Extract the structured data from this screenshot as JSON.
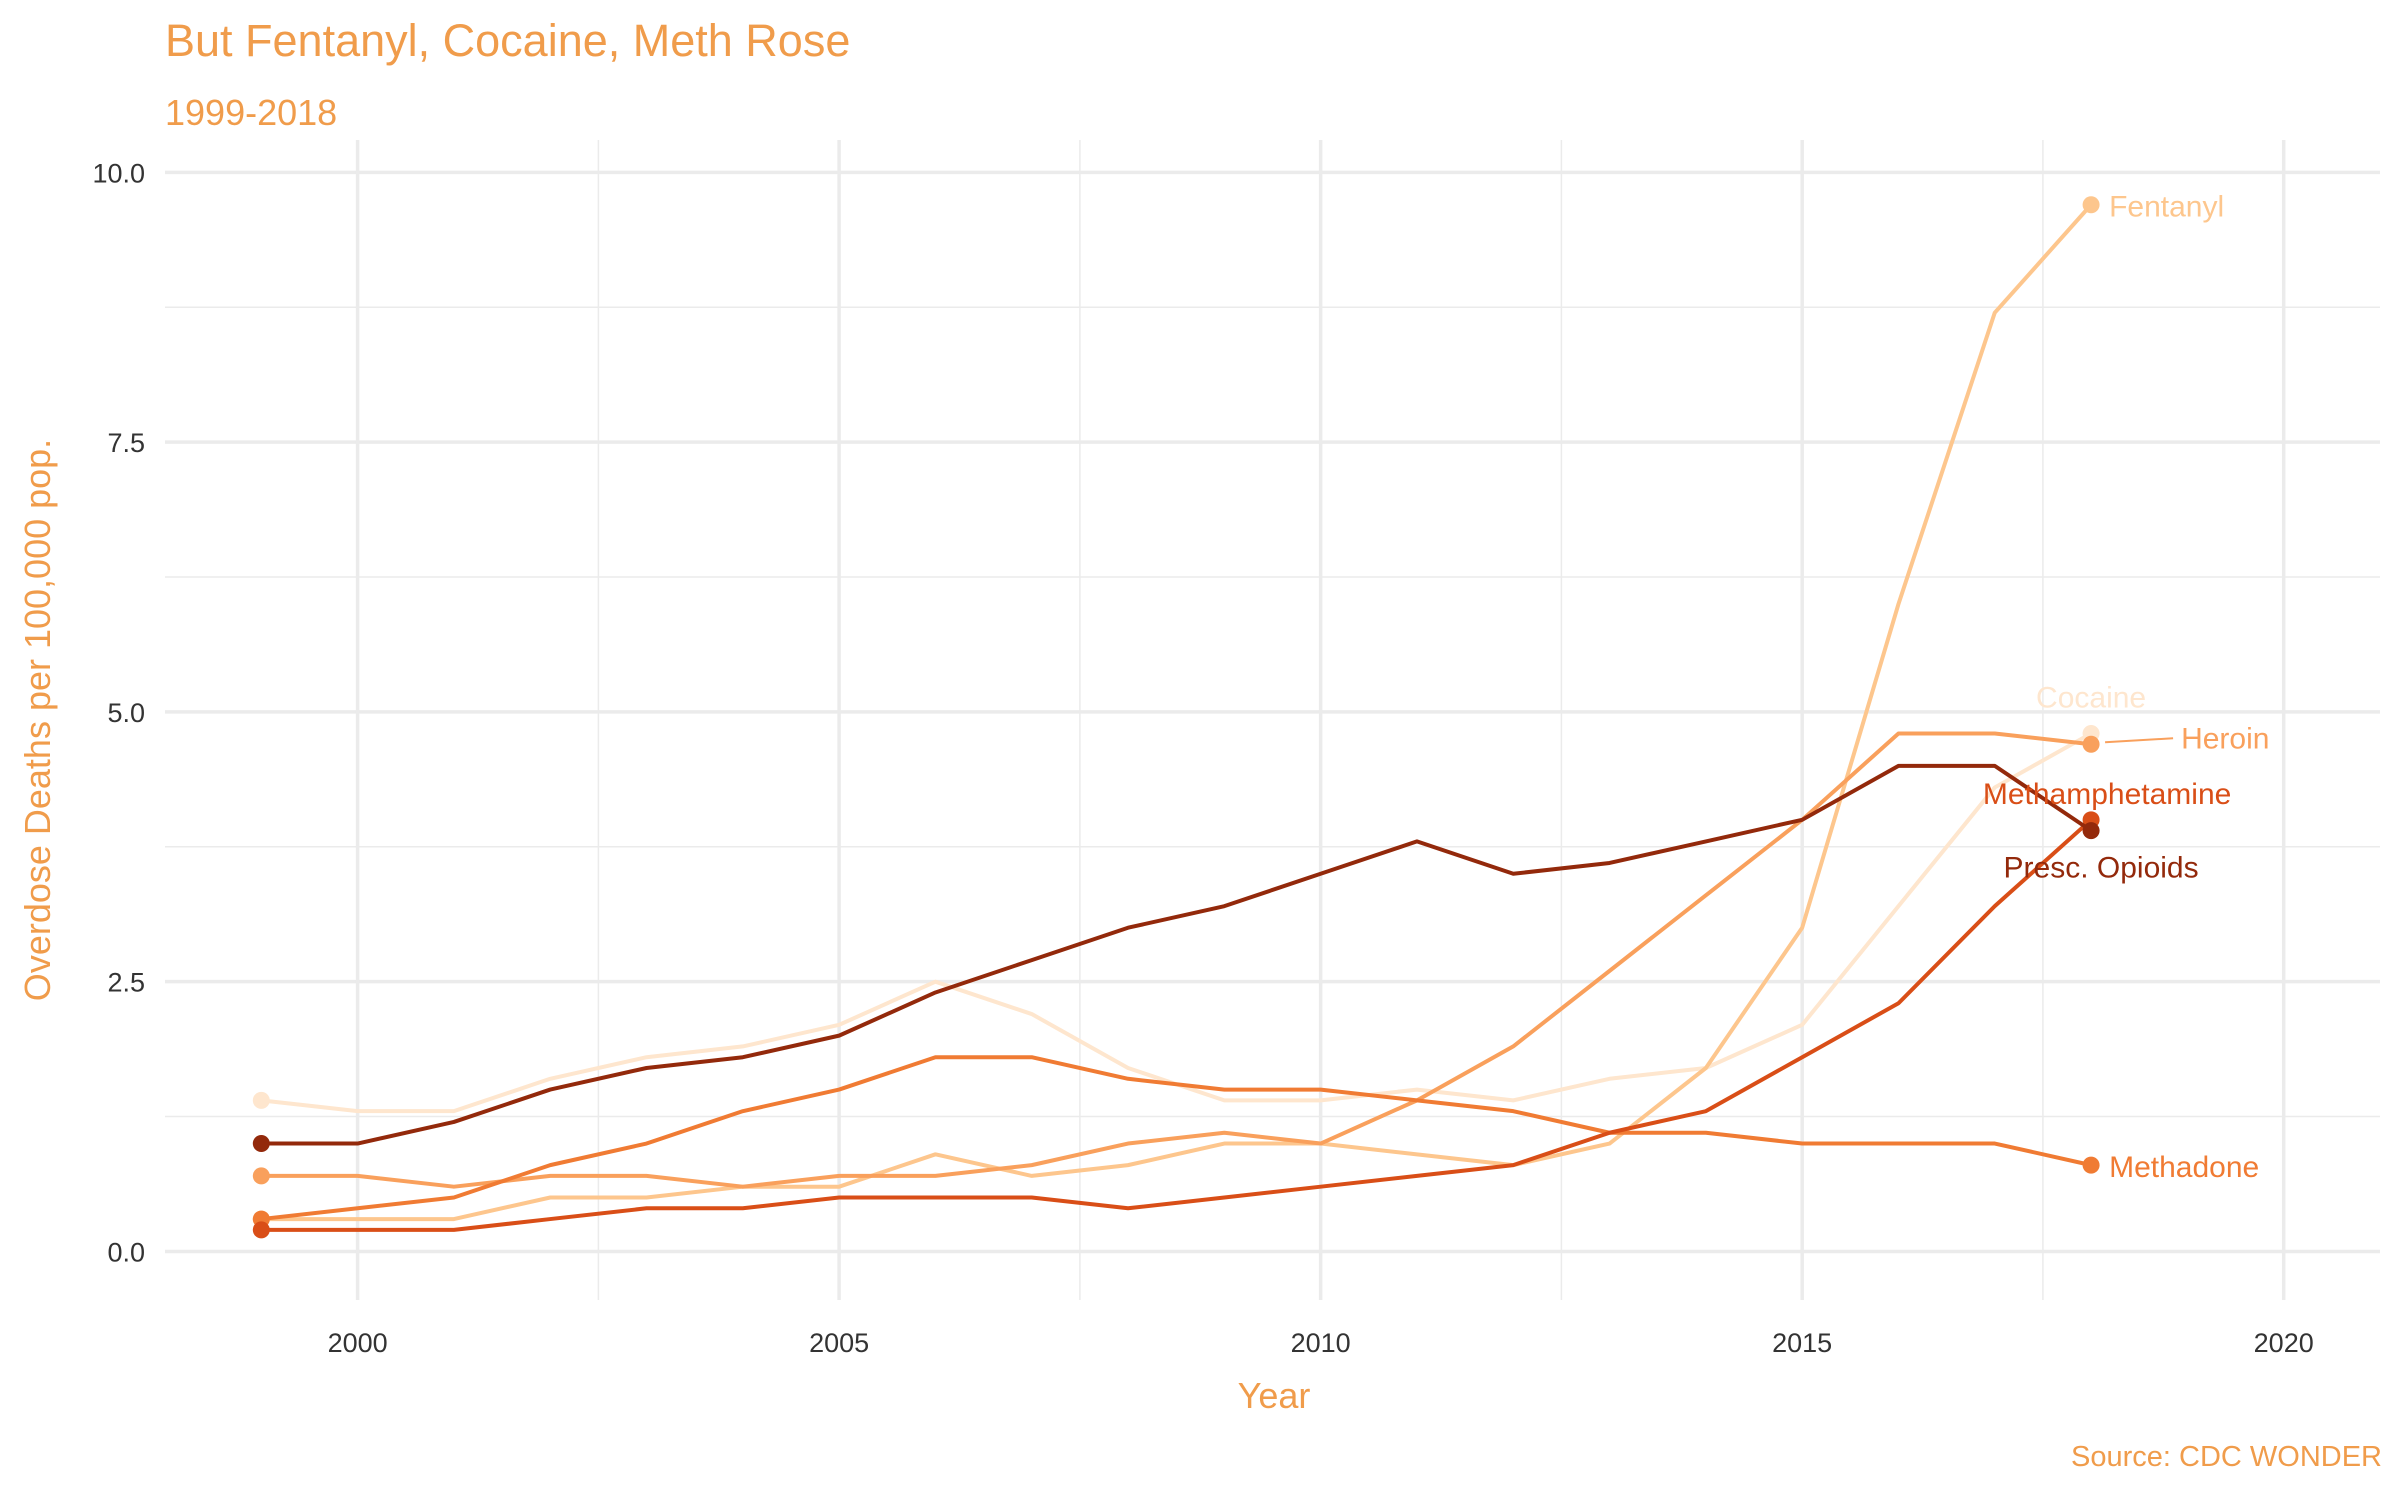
{
  "chart_data": {
    "type": "line",
    "title": "But Fentanyl, Cocaine, Meth Rose",
    "subtitle": "1999-2018",
    "xlabel": "Year",
    "ylabel": "Overdose Deaths per 100,000 pop.",
    "caption": "Source: CDC WONDER",
    "xlim": [
      1998,
      2021
    ],
    "ylim": [
      -0.45,
      10.3
    ],
    "x_ticks": [
      2000,
      2005,
      2010,
      2015,
      2020
    ],
    "x_tick_labels": [
      "2000",
      "2005",
      "2010",
      "2015",
      "2020"
    ],
    "y_ticks": [
      0,
      2.5,
      5,
      7.5,
      10
    ],
    "y_tick_labels": [
      "0.0",
      "2.5",
      "5.0",
      "7.5",
      "10.0"
    ],
    "grid": true,
    "x": [
      1999,
      2000,
      2001,
      2002,
      2003,
      2004,
      2005,
      2006,
      2007,
      2008,
      2009,
      2010,
      2011,
      2012,
      2013,
      2014,
      2015,
      2016,
      2017,
      2018
    ],
    "series": [
      {
        "name": "Cocaine",
        "color": "#fee6ce",
        "values": [
          1.4,
          1.3,
          1.3,
          1.6,
          1.8,
          1.9,
          2.1,
          2.5,
          2.2,
          1.7,
          1.4,
          1.4,
          1.5,
          1.4,
          1.6,
          1.7,
          2.1,
          3.2,
          4.3,
          4.8
        ]
      },
      {
        "name": "Fentanyl",
        "color": "#fdc68d",
        "values": [
          0.3,
          0.3,
          0.3,
          0.5,
          0.5,
          0.6,
          0.6,
          0.9,
          0.7,
          0.8,
          1.0,
          1.0,
          0.9,
          0.8,
          1.0,
          1.7,
          3.0,
          6.0,
          8.7,
          9.7
        ]
      },
      {
        "name": "Heroin",
        "color": "#f9a05c",
        "values": [
          0.7,
          0.7,
          0.6,
          0.7,
          0.7,
          0.6,
          0.7,
          0.7,
          0.8,
          1.0,
          1.1,
          1.0,
          1.4,
          1.9,
          2.6,
          3.3,
          4.0,
          4.8,
          4.8,
          4.7
        ]
      },
      {
        "name": "Methadone",
        "color": "#f07b33",
        "values": [
          0.3,
          0.4,
          0.5,
          0.8,
          1.0,
          1.3,
          1.5,
          1.8,
          1.8,
          1.6,
          1.5,
          1.5,
          1.4,
          1.3,
          1.1,
          1.1,
          1.0,
          1.0,
          1.0,
          0.8
        ]
      },
      {
        "name": "Methamphetamine",
        "color": "#d94e17",
        "values": [
          0.2,
          0.2,
          0.2,
          0.3,
          0.4,
          0.4,
          0.5,
          0.5,
          0.5,
          0.4,
          0.5,
          0.6,
          0.7,
          0.8,
          1.1,
          1.3,
          1.8,
          2.3,
          3.2,
          4.0
        ]
      },
      {
        "name": "Presc. Opioids",
        "color": "#93290b",
        "values": [
          1.0,
          1.0,
          1.2,
          1.5,
          1.7,
          1.8,
          2.0,
          2.4,
          2.7,
          3.0,
          3.2,
          3.5,
          3.8,
          3.5,
          3.6,
          3.8,
          4.0,
          4.5,
          4.5,
          3.9
        ]
      }
    ],
    "colors": {
      "title": "#f09c4b",
      "grid": "#ebebeb",
      "tick_text": "#333333"
    }
  }
}
